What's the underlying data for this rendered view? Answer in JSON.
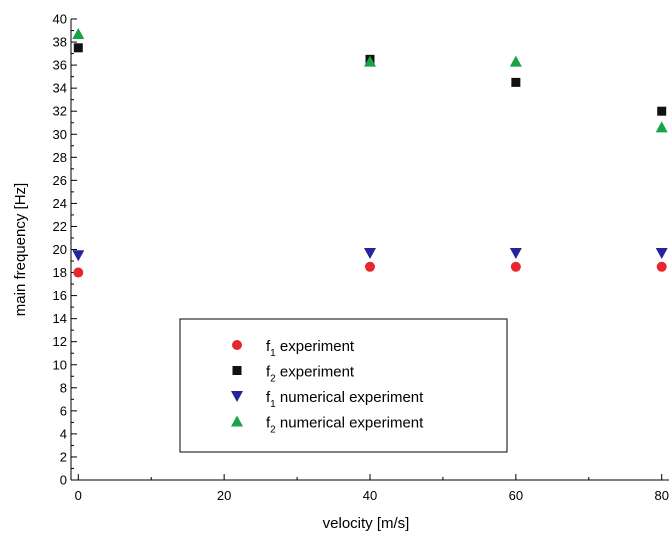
{
  "chart_data": {
    "type": "scatter",
    "title": "",
    "xlabel": "velocity [m/s]",
    "ylabel": "main frequency [Hz]",
    "xlim": [
      -1,
      81
    ],
    "ylim": [
      0,
      40
    ],
    "x_ticks": [
      0,
      20,
      40,
      60,
      80
    ],
    "y_ticks": [
      0,
      2,
      4,
      6,
      8,
      10,
      12,
      14,
      16,
      18,
      20,
      22,
      24,
      26,
      28,
      30,
      32,
      34,
      36,
      38,
      40
    ],
    "grid": false,
    "legend_position": "lower-center",
    "series": [
      {
        "name_main": "f",
        "name_sub": "1",
        "name_rest": " experiment",
        "marker": "circle",
        "color": "#e8262d",
        "points": [
          [
            0,
            18.0
          ],
          [
            40,
            18.5
          ],
          [
            60,
            18.5
          ],
          [
            80,
            18.5
          ]
        ]
      },
      {
        "name_main": "f",
        "name_sub": "2",
        "name_rest": " experiment",
        "marker": "square",
        "color": "#111111",
        "points": [
          [
            0,
            37.5
          ],
          [
            40,
            36.5
          ],
          [
            60,
            34.5
          ],
          [
            80,
            32.0
          ]
        ]
      },
      {
        "name_main": "f",
        "name_sub": "1",
        "name_rest": " numerical experiment",
        "marker": "triangle-down",
        "color": "#25249a",
        "points": [
          [
            0,
            19.5
          ],
          [
            40,
            19.7
          ],
          [
            60,
            19.7
          ],
          [
            80,
            19.7
          ]
        ]
      },
      {
        "name_main": "f",
        "name_sub": "2",
        "name_rest": " numerical experiment",
        "marker": "triangle-up",
        "color": "#1aa24a",
        "points": [
          [
            0,
            38.7
          ],
          [
            40,
            36.3
          ],
          [
            60,
            36.3
          ],
          [
            80,
            30.6
          ]
        ]
      }
    ]
  }
}
